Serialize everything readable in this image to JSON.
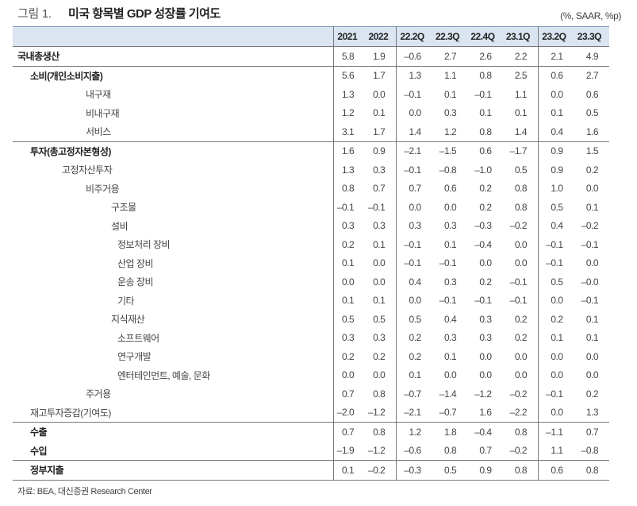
{
  "figure": {
    "number": "그림 1.",
    "title": "미국 항목별 GDP 성장률 기여도",
    "unit": "(%, SAAR, %p)"
  },
  "table": {
    "columns": [
      "",
      "2021",
      "2022",
      "22.2Q",
      "22.3Q",
      "22.4Q",
      "23.1Q",
      "23.2Q",
      "23.3Q"
    ],
    "rows": [
      {
        "label": "국내총생산",
        "indent": 0,
        "bold": true,
        "values": [
          "5.8",
          "1.9",
          "–0.6",
          "2.7",
          "2.6",
          "2.2",
          "2.1",
          "4.9"
        ]
      },
      {
        "label": "소비(개인소비지출)",
        "indent": 1,
        "bold": true,
        "values": [
          "5.6",
          "1.7",
          "1.3",
          "1.1",
          "0.8",
          "2.5",
          "0.6",
          "2.7"
        ]
      },
      {
        "label": "내구재",
        "indent": 3,
        "bold": false,
        "values": [
          "1.3",
          "0.0",
          "–0.1",
          "0.1",
          "–0.1",
          "1.1",
          "0.0",
          "0.6"
        ]
      },
      {
        "label": "비내구재",
        "indent": 3,
        "bold": false,
        "values": [
          "1.2",
          "0.1",
          "0.0",
          "0.3",
          "0.1",
          "0.1",
          "0.1",
          "0.5"
        ]
      },
      {
        "label": "서비스",
        "indent": 3,
        "bold": false,
        "values": [
          "3.1",
          "1.7",
          "1.4",
          "1.2",
          "0.8",
          "1.4",
          "0.4",
          "1.6"
        ]
      },
      {
        "label": "투자(총고정자본형성)",
        "indent": 1,
        "bold": true,
        "values": [
          "1.6",
          "0.9",
          "–2.1",
          "–1.5",
          "0.6",
          "–1.7",
          "0.9",
          "1.5"
        ]
      },
      {
        "label": "고정자산투자",
        "indent": 2,
        "bold": false,
        "values": [
          "1.3",
          "0.3",
          "–0.1",
          "–0.8",
          "–1.0",
          "0.5",
          "0.9",
          "0.2"
        ]
      },
      {
        "label": "비주거용",
        "indent": 3,
        "bold": false,
        "values": [
          "0.8",
          "0.7",
          "0.7",
          "0.6",
          "0.2",
          "0.8",
          "1.0",
          "0.0"
        ]
      },
      {
        "label": "구조물",
        "indent": 4,
        "bold": false,
        "values": [
          "–0.1",
          "–0.1",
          "0.0",
          "0.0",
          "0.2",
          "0.8",
          "0.5",
          "0.1"
        ]
      },
      {
        "label": "설비",
        "indent": 4,
        "bold": false,
        "values": [
          "0.3",
          "0.3",
          "0.3",
          "0.3",
          "–0.3",
          "–0.2",
          "0.4",
          "–0.2"
        ]
      },
      {
        "label": "정보처리 장비",
        "indent": 5,
        "bold": false,
        "values": [
          "0.2",
          "0.1",
          "–0.1",
          "0.1",
          "–0.4",
          "0.0",
          "–0.1",
          "–0.1"
        ]
      },
      {
        "label": "산업 장비",
        "indent": 5,
        "bold": false,
        "values": [
          "0.1",
          "0.0",
          "–0.1",
          "–0.1",
          "0.0",
          "0.0",
          "–0.1",
          "0.0"
        ]
      },
      {
        "label": "운송 장비",
        "indent": 5,
        "bold": false,
        "values": [
          "0.0",
          "0.0",
          "0.4",
          "0.3",
          "0.2",
          "–0.1",
          "0.5",
          "–0.0"
        ]
      },
      {
        "label": "기타",
        "indent": 5,
        "bold": false,
        "values": [
          "0.1",
          "0.1",
          "0.0",
          "–0.1",
          "–0.1",
          "–0.1",
          "0.0",
          "–0.1"
        ]
      },
      {
        "label": "지식재산",
        "indent": 4,
        "bold": false,
        "values": [
          "0.5",
          "0.5",
          "0.5",
          "0.4",
          "0.3",
          "0.2",
          "0.2",
          "0.1"
        ]
      },
      {
        "label": "소프트웨어",
        "indent": 5,
        "bold": false,
        "values": [
          "0.3",
          "0.3",
          "0.2",
          "0.3",
          "0.3",
          "0.2",
          "0.1",
          "0.1"
        ]
      },
      {
        "label": "연구개발",
        "indent": 5,
        "bold": false,
        "values": [
          "0.2",
          "0.2",
          "0.2",
          "0.1",
          "0.0",
          "0.0",
          "0.0",
          "0.0"
        ]
      },
      {
        "label": "엔터테인먼트, 예술, 문화",
        "indent": 5,
        "bold": false,
        "values": [
          "0.0",
          "0.0",
          "0.1",
          "0.0",
          "0.0",
          "0.0",
          "0.0",
          "0.0"
        ]
      },
      {
        "label": "주거용",
        "indent": 3,
        "bold": false,
        "values": [
          "0.7",
          "0.8",
          "–0.7",
          "–1.4",
          "–1.2",
          "–0.2",
          "–0.1",
          "0.2"
        ]
      },
      {
        "label": "재고투자증감(기여도)",
        "indent": 1,
        "bold": false,
        "values": [
          "–2.0",
          "–1.2",
          "–2.1",
          "–0.7",
          "1.6",
          "–2.2",
          "0.0",
          "1.3"
        ]
      },
      {
        "label": "수출",
        "indent": 1,
        "bold": true,
        "values": [
          "0.7",
          "0.8",
          "1.2",
          "1.8",
          "–0.4",
          "0.8",
          "–1.1",
          "0.7"
        ]
      },
      {
        "label": "수입",
        "indent": 1,
        "bold": true,
        "values": [
          "–1.9",
          "–1.2",
          "–0.6",
          "0.8",
          "0.7",
          "–0.2",
          "1.1",
          "–0.8"
        ]
      },
      {
        "label": "정부지출",
        "indent": 1,
        "bold": true,
        "values": [
          "0.1",
          "–0.2",
          "–0.3",
          "0.5",
          "0.9",
          "0.8",
          "0.6",
          "0.8"
        ]
      }
    ]
  },
  "source": "자료: BEA, 대신증권 Research Center"
}
